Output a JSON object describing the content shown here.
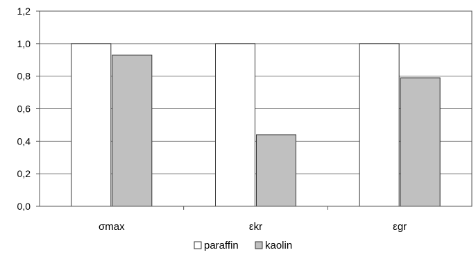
{
  "chart_data": {
    "type": "bar",
    "categories": [
      "σmax",
      "εkr",
      "εgr"
    ],
    "series": [
      {
        "name": "paraffin",
        "values": [
          1.0,
          1.0,
          1.0
        ],
        "color": "#ffffff"
      },
      {
        "name": "kaolin",
        "values": [
          0.93,
          0.44,
          0.79
        ],
        "color": "#c0c0c0"
      }
    ],
    "ylim": [
      0,
      1.2
    ],
    "yticks": [
      "0,0",
      "0,2",
      "0,4",
      "0,6",
      "0,8",
      "1,0",
      "1,2"
    ],
    "grid": true,
    "legend": "bottom-center",
    "title": "",
    "xlabel": "",
    "ylabel": ""
  }
}
